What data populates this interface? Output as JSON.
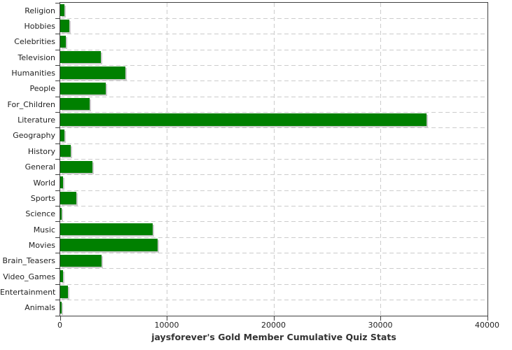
{
  "title": "jaysforever's Gold Member Cumulative Quiz Stats",
  "colors": {
    "bar": "#008000",
    "bar_shadow": "#cccccc",
    "grid": "#cccccc",
    "axis": "#404040",
    "tick_text": "#1f1f1f",
    "title_text": "#333333",
    "background": "#ffffff"
  },
  "chart_data": {
    "type": "bar",
    "orientation": "horizontal",
    "title": "jaysforever's Gold Member Cumulative Quiz Stats",
    "categories": [
      "Religion",
      "Hobbies",
      "Celebrities",
      "Television",
      "Humanities",
      "People",
      "For_Children",
      "Literature",
      "Geography",
      "History",
      "General",
      "World",
      "Sports",
      "Science",
      "Music",
      "Movies",
      "Brain_Teasers",
      "Video_Games",
      "Entertainment",
      "Animals"
    ],
    "values": [
      400,
      860,
      550,
      3800,
      6080,
      4290,
      2750,
      34280,
      390,
      980,
      3040,
      290,
      1480,
      130,
      8640,
      9120,
      3870,
      260,
      730,
      150
    ],
    "xlabel": "",
    "ylabel": "",
    "xlim": [
      0,
      40000
    ],
    "x_ticks": [
      0,
      10000,
      20000,
      30000,
      40000
    ],
    "x_tick_labels": [
      "0",
      "10000",
      "20000",
      "30000",
      "40000"
    ],
    "grid": true,
    "vertical_gridline_values": [
      10000,
      20000,
      30000
    ],
    "legend": "none",
    "bar_color": "#008000"
  }
}
